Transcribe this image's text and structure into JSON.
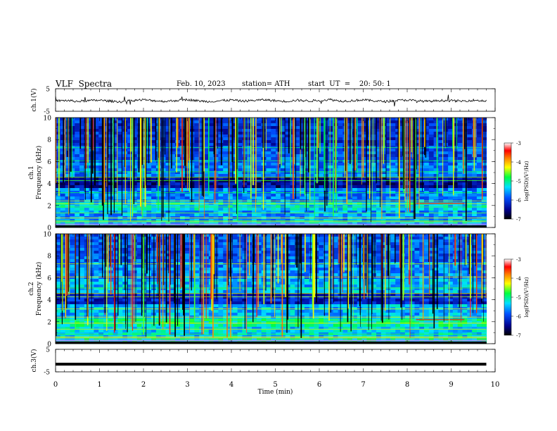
{
  "header": {
    "title": "VLF  Spectra",
    "date": "Feb. 10, 2023",
    "station": "station= ATH",
    "start": "start  UT  =    20: 50: 1"
  },
  "chart_data": [
    {
      "type": "line",
      "panel": "ch1-waveform",
      "ylabel": "ch.1(V)",
      "yticks": [
        "5",
        "-5"
      ],
      "ylim": [
        -5,
        5
      ],
      "x": [
        0,
        0.25,
        0.5,
        0.75,
        1,
        1.25,
        1.5,
        1.75,
        2,
        2.25,
        2.5,
        2.75,
        3,
        3.25,
        3.5,
        3.75,
        4,
        4.25,
        4.5,
        4.75,
        5,
        5.25,
        5.5,
        5.75,
        6,
        6.25,
        6.5,
        6.75,
        7,
        7.25,
        7.5,
        7.75,
        8,
        8.25,
        8.5,
        8.75,
        9,
        9.25,
        9.5,
        9.8
      ],
      "values": [
        -0.4,
        -0.2,
        -0.6,
        -0.3,
        -0.1,
        -0.5,
        -0.8,
        -0.2,
        0.1,
        -0.3,
        -0.6,
        -0.2,
        0.2,
        -0.4,
        -0.7,
        -0.3,
        0.0,
        -0.5,
        -0.2,
        0.1,
        -0.3,
        -0.6,
        -0.1,
        -0.4,
        -0.2,
        0.2,
        -0.5,
        -0.3,
        0.1,
        -0.4,
        -0.7,
        -0.2,
        0.0,
        -0.4,
        -0.6,
        -0.2,
        -0.3,
        -0.5,
        -0.1,
        -0.4
      ]
    },
    {
      "type": "heatmap",
      "panel": "ch1-spectrogram",
      "ylabel": "ch.1\nFrequency  (kHz)",
      "ylim": [
        0,
        10
      ],
      "yticks": [
        "0",
        "2",
        "4",
        "6",
        "8",
        "10"
      ],
      "colorbar": {
        "label": "log(PSD)(V²/Hz)",
        "ticks": [
          "-3",
          "-4",
          "-5",
          "-6",
          "-7"
        ],
        "range": [
          -7,
          -3
        ]
      }
    },
    {
      "type": "heatmap",
      "panel": "ch2-spectrogram",
      "ylabel": "ch.2\nFrequency  (kHz)",
      "ylim": [
        0,
        10
      ],
      "yticks": [
        "0",
        "2",
        "4",
        "6",
        "8",
        "10"
      ],
      "colorbar": {
        "label": "log(PSD)(V²/Hz)",
        "ticks": [
          "-3",
          "-4",
          "-5",
          "-6",
          "-7"
        ],
        "range": [
          -7,
          -3
        ]
      }
    },
    {
      "type": "line",
      "panel": "ch3-waveform",
      "ylabel": "ch.3(V)",
      "yticks": [
        "5",
        "-5"
      ],
      "ylim": [
        -5,
        5
      ],
      "x": [
        0,
        9.8
      ],
      "values": [
        -1.6,
        -1.6
      ]
    }
  ],
  "xaxis": {
    "label": "Time  (min)",
    "ticks": [
      "0",
      "1",
      "2",
      "3",
      "4",
      "5",
      "6",
      "7",
      "8",
      "9",
      "10"
    ],
    "range": [
      0,
      10
    ]
  },
  "colors": {
    "axis": "#000000",
    "waveform": "#000000"
  }
}
